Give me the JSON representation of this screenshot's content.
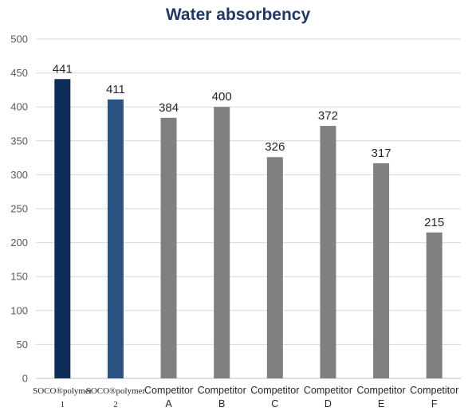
{
  "chart_data": {
    "type": "bar",
    "title": "Water absorbency",
    "xlabel": "",
    "ylabel": "",
    "ylim": [
      0,
      500
    ],
    "yticks": [
      0,
      50,
      100,
      150,
      200,
      250,
      300,
      350,
      400,
      450,
      500
    ],
    "grid": true,
    "categories": [
      [
        "SOCO®polymer",
        "1"
      ],
      [
        "SOCO®polymer",
        "2"
      ],
      [
        "Competitor",
        "A"
      ],
      [
        "Competitor",
        "B"
      ],
      [
        "Competitor",
        "C"
      ],
      [
        "Competitor",
        "D"
      ],
      [
        "Competitor",
        "E"
      ],
      [
        "Competitor",
        "F"
      ]
    ],
    "values": [
      441,
      411,
      384,
      400,
      326,
      372,
      317,
      215
    ],
    "colors": [
      "#0e2d57",
      "#2a5283",
      "#808080",
      "#808080",
      "#808080",
      "#808080",
      "#808080",
      "#808080"
    ],
    "data_labels": true
  }
}
